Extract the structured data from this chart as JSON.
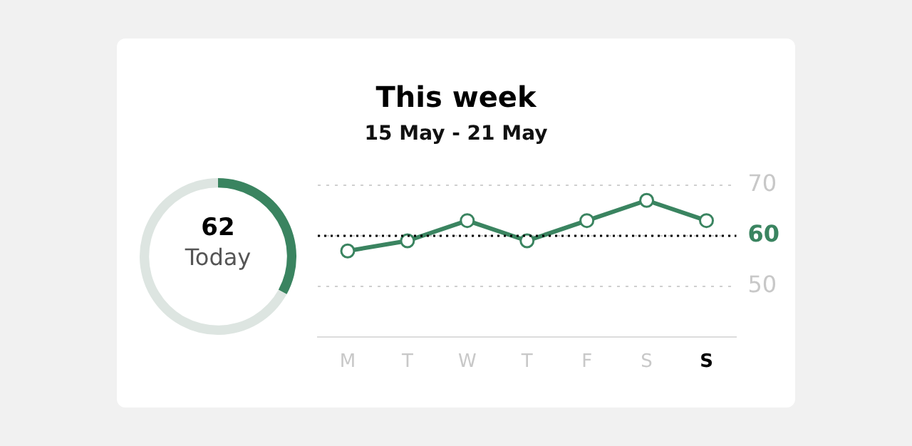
{
  "chart_data": [
    {
      "type": "donut",
      "categories": [
        null,
        null
      ],
      "values": [
        33,
        67
      ],
      "colors": [
        "#3a8460",
        "#dde5e1"
      ],
      "annotations": [
        "62",
        "Today"
      ],
      "legend": false
    },
    {
      "type": "line",
      "title": "This week",
      "subtitle": "15 May - 21 May",
      "categories": [
        "M",
        "T",
        "W",
        "T",
        "F",
        "S",
        "S"
      ],
      "series": [
        {
          "color": "#3a8460",
          "values": [
            57,
            59,
            63,
            59,
            63,
            67,
            63
          ]
        }
      ],
      "ylim": [
        40,
        70
      ],
      "yticks": [
        50,
        60,
        70
      ],
      "grid": "y",
      "marker": "circle",
      "legend": false,
      "ref_lines": [
        {
          "axis": "y",
          "value": 60,
          "color": "#000000",
          "line_style": "dotted"
        }
      ]
    }
  ]
}
